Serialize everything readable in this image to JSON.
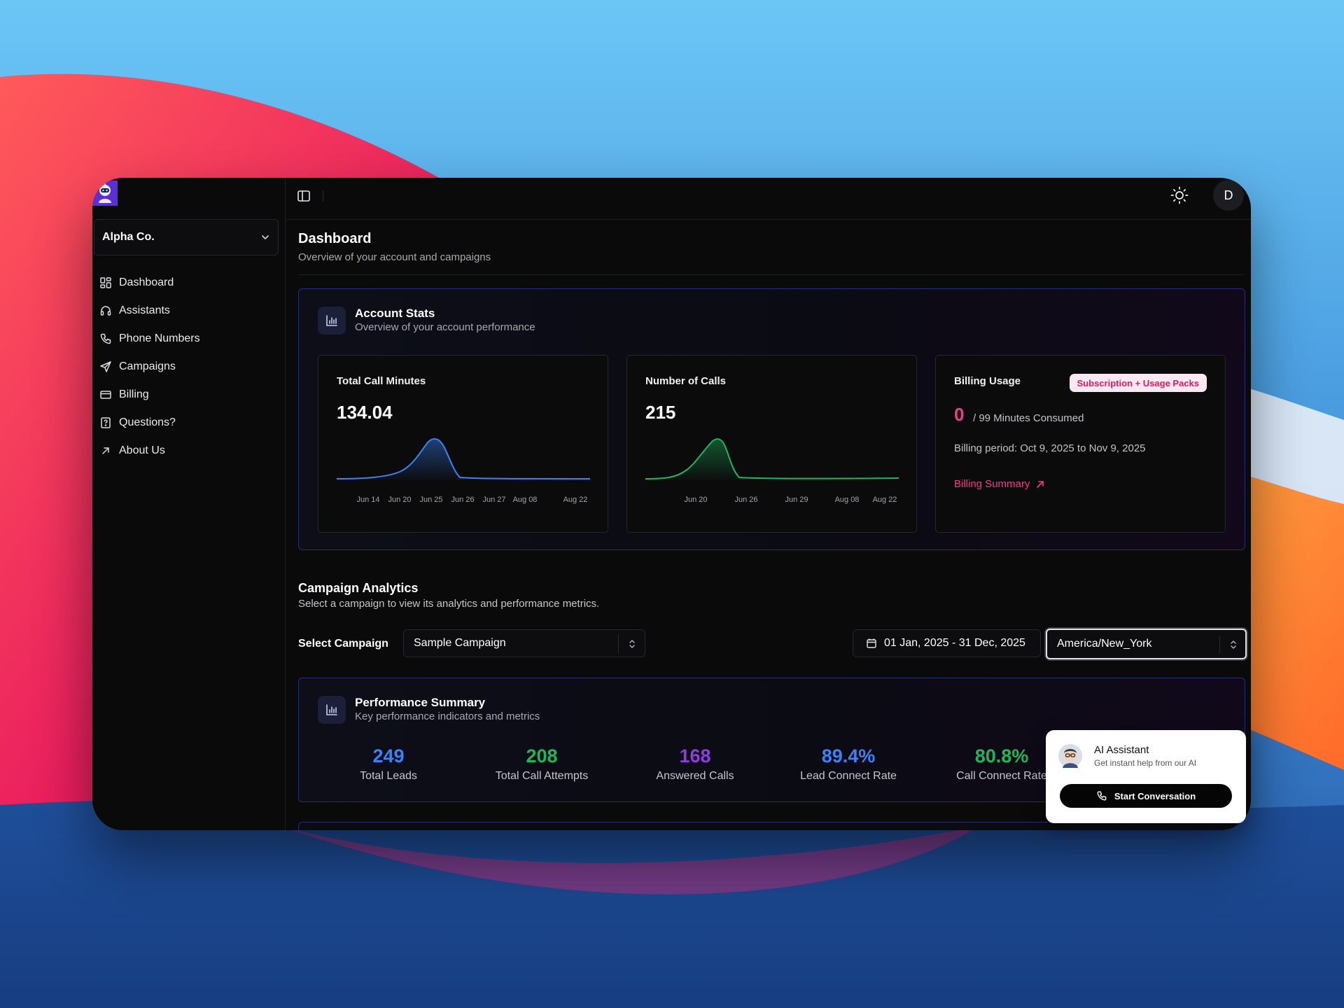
{
  "colors": {
    "accent_blue": "#3b82f6",
    "accent_green": "#1fb55d",
    "accent_purple": "#8b3fe0",
    "accent_pink": "#ec3f88"
  },
  "sidebar": {
    "org_name": "Alpha Co.",
    "items": [
      {
        "label": "Dashboard",
        "icon": "dashboard-icon"
      },
      {
        "label": "Assistants",
        "icon": "headset-icon"
      },
      {
        "label": "Phone Numbers",
        "icon": "phone-icon"
      },
      {
        "label": "Campaigns",
        "icon": "send-icon"
      },
      {
        "label": "Billing",
        "icon": "credit-card-icon"
      },
      {
        "label": "Questions?",
        "icon": "help-icon"
      },
      {
        "label": "About Us",
        "icon": "arrow-up-right-icon"
      }
    ]
  },
  "topbar": {
    "avatar_initial": "D"
  },
  "header": {
    "title": "Dashboard",
    "subtitle": "Overview of your account and campaigns"
  },
  "account_stats": {
    "title": "Account Stats",
    "subtitle": "Overview of your account performance",
    "total_call_minutes": {
      "label": "Total Call Minutes",
      "value": "134.04",
      "ticks": [
        "Jun 14",
        "Jun 20",
        "Jun 25",
        "Jun 26",
        "Jun 27",
        "Aug 08",
        "Aug 22"
      ]
    },
    "number_of_calls": {
      "label": "Number of Calls",
      "value": "215",
      "ticks": [
        "Jun 20",
        "Jun 26",
        "Jun 29",
        "Aug 08",
        "Aug 22"
      ]
    },
    "billing": {
      "label": "Billing Usage",
      "badge": "Subscription + Usage Packs",
      "used": "0",
      "total": "/ 99 Minutes Consumed",
      "period": "Billing period: Oct 9, 2025 to Nov 9, 2025",
      "link": "Billing Summary"
    }
  },
  "campaign_analytics": {
    "title": "Campaign Analytics",
    "subtitle": "Select a campaign to view its analytics and performance metrics.",
    "select_label": "Select Campaign",
    "selected_campaign": "Sample Campaign",
    "date_range": "01 Jan, 2025 - 31 Dec, 2025",
    "timezone": "America/New_York"
  },
  "performance": {
    "title": "Performance Summary",
    "subtitle": "Key performance indicators and metrics",
    "metrics": [
      {
        "value": "249",
        "label": "Total Leads",
        "color": "#3b82f6"
      },
      {
        "value": "208",
        "label": "Total Call Attempts",
        "color": "#1fb55d"
      },
      {
        "value": "168",
        "label": "Answered Calls",
        "color": "#8b3fe0"
      },
      {
        "value": "89.4%",
        "label": "Lead Connect Rate",
        "color": "#3b82f6"
      },
      {
        "value": "80.8%",
        "label": "Call Connect Rate",
        "color": "#1fb55d"
      }
    ]
  },
  "ai_assistant": {
    "title": "AI Assistant",
    "subtitle": "Get instant help from our AI",
    "button": "Start Conversation"
  }
}
